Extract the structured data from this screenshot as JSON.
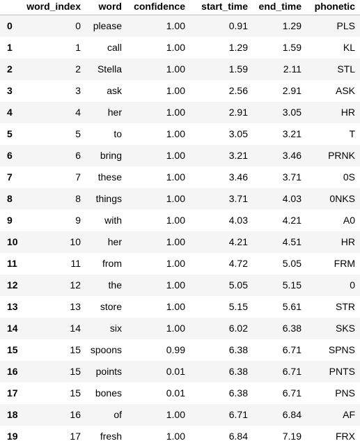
{
  "table": {
    "columns": [
      "",
      "word_index",
      "word",
      "confidence",
      "start_time",
      "end_time",
      "phonetic"
    ],
    "rows": [
      {
        "index": "0",
        "word_index": "0",
        "word": "please",
        "confidence": "1.00",
        "start_time": "0.91",
        "end_time": "1.29",
        "phonetic": "PLS"
      },
      {
        "index": "1",
        "word_index": "1",
        "word": "call",
        "confidence": "1.00",
        "start_time": "1.29",
        "end_time": "1.59",
        "phonetic": "KL"
      },
      {
        "index": "2",
        "word_index": "2",
        "word": "Stella",
        "confidence": "1.00",
        "start_time": "1.59",
        "end_time": "2.11",
        "phonetic": "STL"
      },
      {
        "index": "3",
        "word_index": "3",
        "word": "ask",
        "confidence": "1.00",
        "start_time": "2.56",
        "end_time": "2.91",
        "phonetic": "ASK"
      },
      {
        "index": "4",
        "word_index": "4",
        "word": "her",
        "confidence": "1.00",
        "start_time": "2.91",
        "end_time": "3.05",
        "phonetic": "HR"
      },
      {
        "index": "5",
        "word_index": "5",
        "word": "to",
        "confidence": "1.00",
        "start_time": "3.05",
        "end_time": "3.21",
        "phonetic": "T"
      },
      {
        "index": "6",
        "word_index": "6",
        "word": "bring",
        "confidence": "1.00",
        "start_time": "3.21",
        "end_time": "3.46",
        "phonetic": "PRNK"
      },
      {
        "index": "7",
        "word_index": "7",
        "word": "these",
        "confidence": "1.00",
        "start_time": "3.46",
        "end_time": "3.71",
        "phonetic": "0S"
      },
      {
        "index": "8",
        "word_index": "8",
        "word": "things",
        "confidence": "1.00",
        "start_time": "3.71",
        "end_time": "4.03",
        "phonetic": "0NKS"
      },
      {
        "index": "9",
        "word_index": "9",
        "word": "with",
        "confidence": "1.00",
        "start_time": "4.03",
        "end_time": "4.21",
        "phonetic": "A0"
      },
      {
        "index": "10",
        "word_index": "10",
        "word": "her",
        "confidence": "1.00",
        "start_time": "4.21",
        "end_time": "4.51",
        "phonetic": "HR"
      },
      {
        "index": "11",
        "word_index": "11",
        "word": "from",
        "confidence": "1.00",
        "start_time": "4.72",
        "end_time": "5.05",
        "phonetic": "FRM"
      },
      {
        "index": "12",
        "word_index": "12",
        "word": "the",
        "confidence": "1.00",
        "start_time": "5.05",
        "end_time": "5.15",
        "phonetic": "0"
      },
      {
        "index": "13",
        "word_index": "13",
        "word": "store",
        "confidence": "1.00",
        "start_time": "5.15",
        "end_time": "5.61",
        "phonetic": "STR"
      },
      {
        "index": "14",
        "word_index": "14",
        "word": "six",
        "confidence": "1.00",
        "start_time": "6.02",
        "end_time": "6.38",
        "phonetic": "SKS"
      },
      {
        "index": "15",
        "word_index": "15",
        "word": "spoons",
        "confidence": "0.99",
        "start_time": "6.38",
        "end_time": "6.71",
        "phonetic": "SPNS"
      },
      {
        "index": "16",
        "word_index": "15",
        "word": "points",
        "confidence": "0.01",
        "start_time": "6.38",
        "end_time": "6.71",
        "phonetic": "PNTS"
      },
      {
        "index": "17",
        "word_index": "15",
        "word": "bones",
        "confidence": "0.01",
        "start_time": "6.38",
        "end_time": "6.71",
        "phonetic": "PNS"
      },
      {
        "index": "18",
        "word_index": "16",
        "word": "of",
        "confidence": "1.00",
        "start_time": "6.71",
        "end_time": "6.84",
        "phonetic": "AF"
      },
      {
        "index": "19",
        "word_index": "17",
        "word": "fresh",
        "confidence": "1.00",
        "start_time": "6.84",
        "end_time": "7.19",
        "phonetic": "FRX"
      }
    ]
  }
}
